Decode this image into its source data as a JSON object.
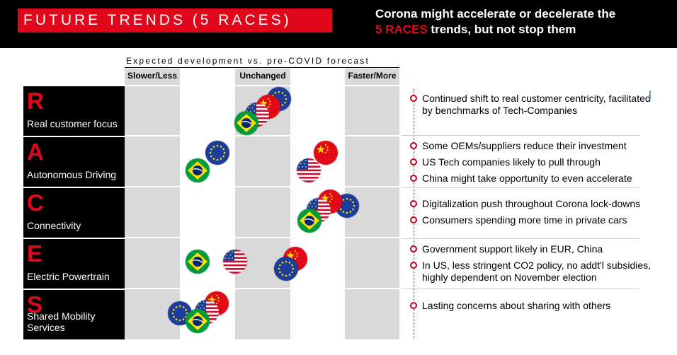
{
  "header": {
    "title": "FUTURE TRENDS (5 RACES)",
    "subtitle_line1": "Corona might accelerate or decelerate the",
    "subtitle_accent": "5 RACES",
    "subtitle_rest": " trends, but not stop them"
  },
  "axis": {
    "caption": "Expected development vs. pre-COVID forecast",
    "labels": {
      "slower": "Slower/Less",
      "unchanged": "Unchanged",
      "faster": "Faster/More"
    }
  },
  "colors": {
    "accent": "#e0071b",
    "grey_column": "#d9d9d9",
    "header_bg": "#000000"
  },
  "races": [
    {
      "letter": "R",
      "label": "Real customer focus",
      "bullets": [
        "Continued shift to real customer centricity, facilitated by benchmarks of Tech-Companies"
      ]
    },
    {
      "letter": "A",
      "label": "Autonomous Driving",
      "bullets": [
        "Some OEMs/suppliers reduce their investment",
        "US Tech companies likely to pull through",
        "China might take opportunity to even accelerate"
      ]
    },
    {
      "letter": "C",
      "label": "Connectivity",
      "bullets": [
        "Digitalization push throughout Corona lock-downs",
        "Consumers spending more time in private cars"
      ]
    },
    {
      "letter": "E",
      "label": "Electric Powertrain",
      "bullets": [
        "Government support likely in EUR, China",
        "In US, less stringent CO2 policy, no addt'l subsidies, highly dependent on November election"
      ]
    },
    {
      "letter": "S",
      "label": "Shared Mobility Services",
      "bullets": [
        "Lasting concerns about sharing with others"
      ]
    }
  ],
  "flag_icons": [
    "eu-flag-icon",
    "china-flag-icon",
    "usa-flag-icon",
    "brazil-flag-icon"
  ]
}
